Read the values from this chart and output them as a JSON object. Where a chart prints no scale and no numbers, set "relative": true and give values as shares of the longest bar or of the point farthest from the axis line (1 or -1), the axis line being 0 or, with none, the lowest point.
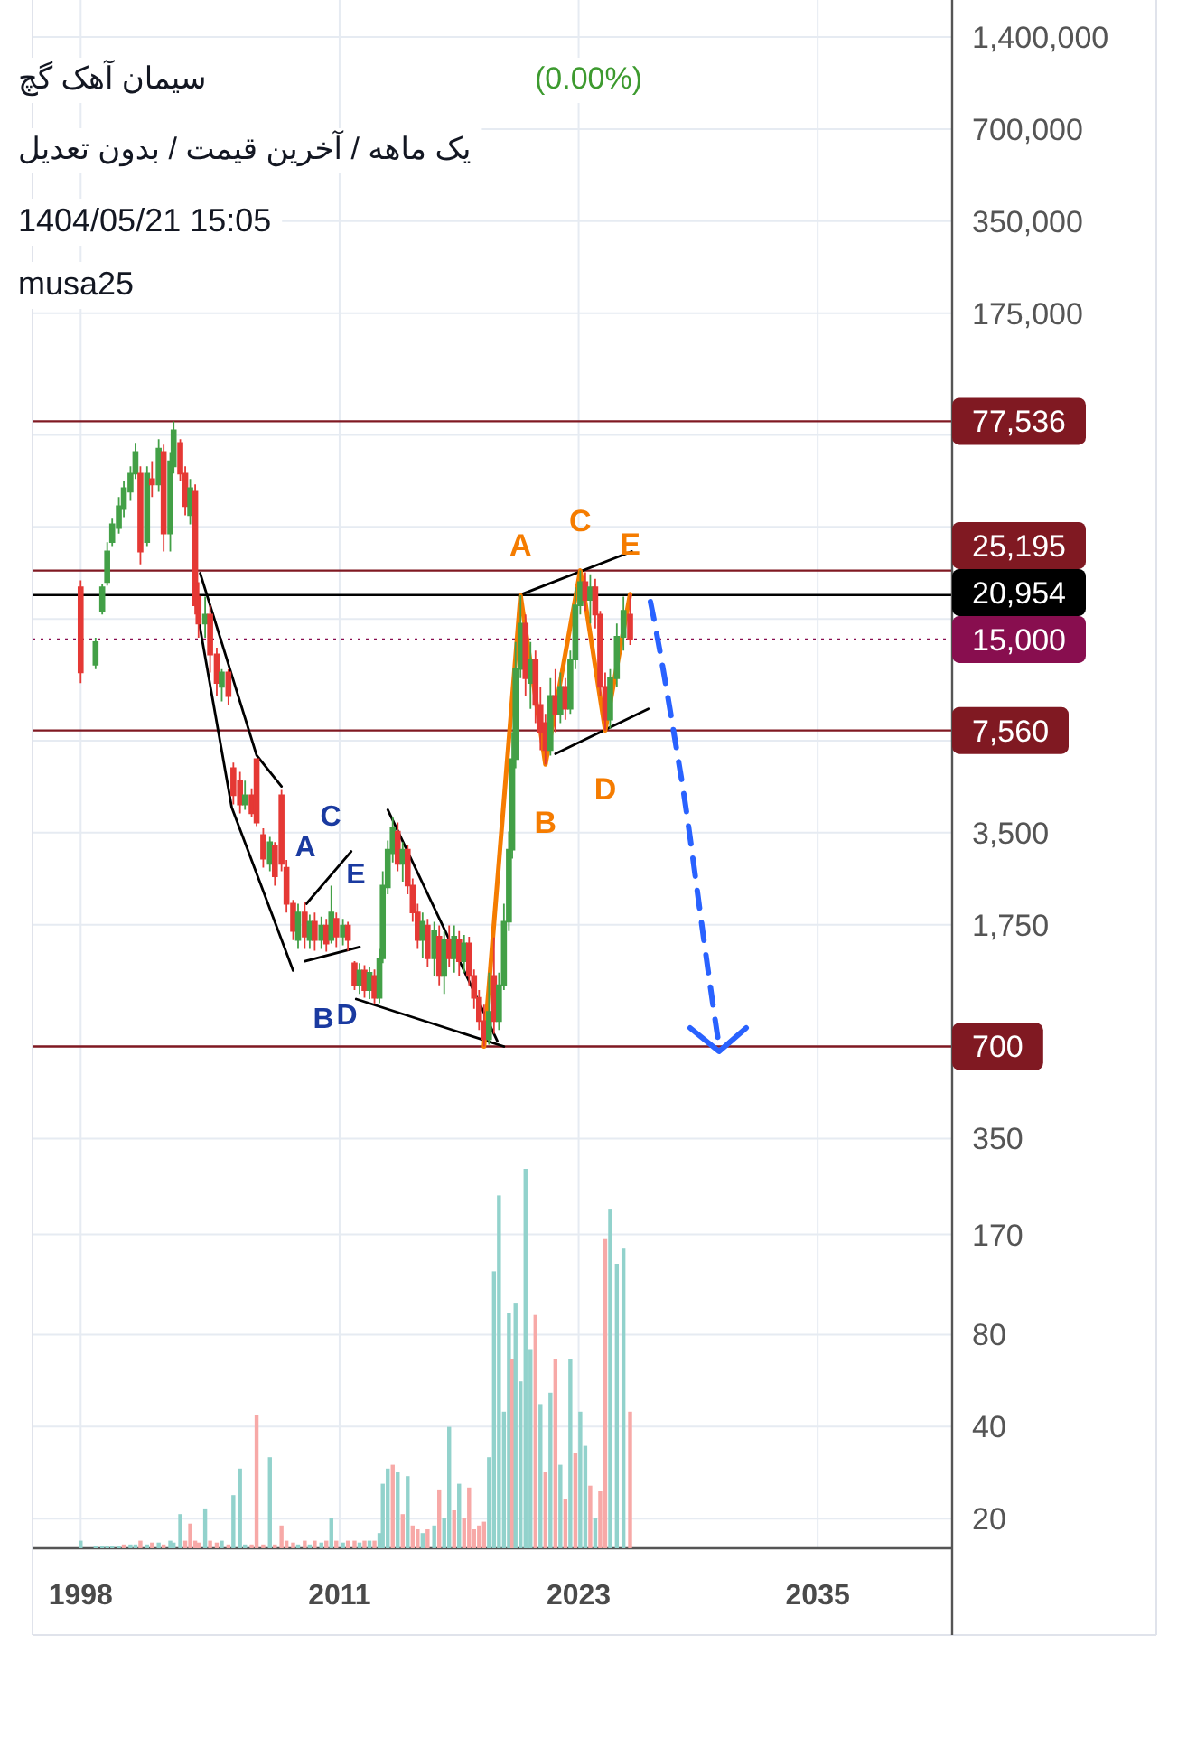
{
  "chart_data": [
    {
      "type": "candlestick",
      "title": "سیمان آهک گچ",
      "subtitle": "یک ماهه / آخرین قیمت / بدون تعدیل",
      "annotations": [
        "(0.00%)",
        "1404/05/21 15:05",
        "musa25",
        "A",
        "B",
        "C",
        "D",
        "E"
      ],
      "x": [
        "1998-01",
        "1998-10",
        "1999-02",
        "1999-05",
        "1999-08",
        "1999-12",
        "2000-03",
        "2000-07",
        "2000-10",
        "2001-01",
        "2001-05",
        "2001-08",
        "2001-12",
        "2002-03",
        "2002-07",
        "2002-09",
        "2003-01",
        "2003-04",
        "2003-07",
        "2003-10",
        "2003-12",
        "2004-04",
        "2004-07",
        "2004-11",
        "2005-02",
        "2005-06",
        "2005-09",
        "2006-01",
        "2006-04",
        "2006-08",
        "2006-11",
        "2007-03",
        "2007-07",
        "2007-10",
        "2008-02",
        "2008-05",
        "2008-09",
        "2008-12",
        "2009-04",
        "2009-07",
        "2009-10",
        "2010-02",
        "2010-05",
        "2010-08",
        "2010-11",
        "2011-03",
        "2011-06",
        "2011-10",
        "2012-01",
        "2012-04",
        "2012-07",
        "2012-10",
        "2013-01",
        "2013-03",
        "2013-06",
        "2013-09",
        "2013-12",
        "2014-03",
        "2014-06",
        "2014-09",
        "2014-12",
        "2015-03",
        "2015-06",
        "2015-10",
        "2016-01",
        "2016-04",
        "2016-07",
        "2016-10",
        "2017-01",
        "2017-04",
        "2017-07",
        "2017-10",
        "2018-01",
        "2018-04",
        "2018-07",
        "2018-10",
        "2019-01",
        "2019-04",
        "2019-07",
        "2019-09",
        "2019-11",
        "2020-02",
        "2020-05",
        "2020-08",
        "2020-11",
        "2021-02",
        "2021-05",
        "2021-08",
        "2021-11",
        "2022-02",
        "2022-05",
        "2022-08",
        "2022-11",
        "2023-02",
        "2023-05",
        "2023-08",
        "2023-11",
        "2024-02",
        "2024-05",
        "2024-08",
        "2024-12",
        "2025-04",
        "2025-08"
      ],
      "ohlc": [
        [
          22200,
          23400,
          10800,
          11700
        ],
        [
          12400,
          15200,
          12000,
          14700
        ],
        [
          18600,
          22800,
          18100,
          22200
        ],
        [
          23100,
          31200,
          22500,
          29100
        ],
        [
          31200,
          37200,
          30300,
          35700
        ],
        [
          34700,
          43800,
          33300,
          40900
        ],
        [
          40000,
          49500,
          37700,
          46900
        ],
        [
          45600,
          55200,
          42600,
          52300
        ],
        [
          52300,
          65900,
          50200,
          61500
        ],
        [
          52300,
          55200,
          26400,
          29100
        ],
        [
          31200,
          55200,
          30300,
          52300
        ],
        [
          50200,
          57400,
          43800,
          48200
        ],
        [
          48200,
          67700,
          45600,
          63100
        ],
        [
          61500,
          65000,
          29100,
          33300
        ],
        [
          33300,
          61500,
          29100,
          57400
        ],
        [
          55200,
          77500,
          52300,
          72400
        ],
        [
          65900,
          67700,
          49500,
          52300
        ],
        [
          52300,
          55200,
          38200,
          40900
        ],
        [
          38200,
          50200,
          35700,
          46900
        ],
        [
          45600,
          48200,
          18100,
          19400
        ],
        [
          20700,
          23100,
          15200,
          16900
        ],
        [
          16900,
          20700,
          15200,
          18100
        ],
        [
          18100,
          19400,
          11700,
          13400
        ],
        [
          13400,
          14100,
          9800,
          10800
        ],
        [
          10500,
          12000,
          9400,
          11700
        ],
        [
          11700,
          12000,
          9160,
          9800
        ],
        [
          5690,
          5930,
          4330,
          4640
        ],
        [
          5180,
          5530,
          4050,
          4330
        ],
        [
          4330,
          5180,
          4160,
          4640
        ],
        [
          4640,
          4890,
          3940,
          4050
        ],
        [
          6090,
          6090,
          3680,
          3780
        ],
        [
          3440,
          3620,
          2690,
          2880
        ],
        [
          2770,
          3390,
          2620,
          3260
        ],
        [
          3180,
          3260,
          2350,
          2520
        ],
        [
          4640,
          4830,
          2620,
          2770
        ],
        [
          2690,
          2850,
          1920,
          2050
        ],
        [
          2050,
          2110,
          1560,
          1670
        ],
        [
          1560,
          2050,
          1460,
          1920
        ],
        [
          1920,
          2080,
          1460,
          1600
        ],
        [
          1560,
          1890,
          1460,
          1790
        ],
        [
          1790,
          1920,
          1440,
          1560
        ],
        [
          1560,
          1860,
          1460,
          1740
        ],
        [
          1740,
          1830,
          1430,
          1520
        ],
        [
          1560,
          2350,
          1520,
          1920
        ],
        [
          1830,
          1920,
          1480,
          1600
        ],
        [
          1600,
          1830,
          1500,
          1740
        ],
        [
          1740,
          1790,
          1440,
          1560
        ],
        [
          1310,
          1330,
          1070,
          1110
        ],
        [
          1110,
          1310,
          1040,
          1240
        ],
        [
          1240,
          1290,
          1010,
          1070
        ],
        [
          1070,
          1270,
          1000,
          1220
        ],
        [
          1190,
          1250,
          960,
          1010
        ],
        [
          1010,
          1460,
          970,
          1360
        ],
        [
          1360,
          2620,
          1310,
          2350
        ],
        [
          2320,
          3300,
          2200,
          3080
        ],
        [
          3000,
          3940,
          2800,
          3640
        ],
        [
          3530,
          3780,
          2620,
          2770
        ],
        [
          2770,
          3260,
          2420,
          3080
        ],
        [
          3080,
          3180,
          2200,
          2350
        ],
        [
          2350,
          2480,
          1790,
          1920
        ],
        [
          1920,
          2050,
          1460,
          1560
        ],
        [
          1560,
          1920,
          1360,
          1790
        ],
        [
          1740,
          1830,
          1270,
          1360
        ],
        [
          1360,
          1790,
          1190,
          1670
        ],
        [
          1600,
          1740,
          1110,
          1190
        ],
        [
          1190,
          1670,
          1040,
          1560
        ],
        [
          1560,
          1740,
          1270,
          1360
        ],
        [
          1360,
          1740,
          1220,
          1600
        ],
        [
          1560,
          1670,
          1190,
          1330
        ],
        [
          1330,
          1620,
          1220,
          1520
        ],
        [
          1520,
          1600,
          1110,
          1190
        ],
        [
          1190,
          1250,
          930,
          1010
        ],
        [
          1010,
          1070,
          792,
          848
        ],
        [
          848,
          958,
          700,
          740
        ],
        [
          740,
          1220,
          710,
          908
        ],
        [
          1190,
          1590,
          770,
          848
        ],
        [
          848,
          1220,
          792,
          1110
        ],
        [
          1110,
          2050,
          1070,
          1790
        ],
        [
          1790,
          3530,
          1670,
          3080
        ],
        [
          3080,
          7470,
          2880,
          6090
        ],
        [
          6090,
          14700,
          5690,
          12000
        ],
        [
          12000,
          20900,
          11200,
          16900
        ],
        [
          16900,
          18100,
          9800,
          11200
        ],
        [
          10800,
          14700,
          8900,
          12900
        ],
        [
          12900,
          13800,
          7990,
          9160
        ],
        [
          9160,
          10500,
          6520,
          7470
        ],
        [
          7990,
          8560,
          5850,
          6520
        ],
        [
          6520,
          11200,
          6250,
          9800
        ],
        [
          9800,
          12000,
          7470,
          8560
        ],
        [
          8560,
          11700,
          7990,
          10500
        ],
        [
          10500,
          11200,
          8200,
          8900
        ],
        [
          8900,
          13800,
          8560,
          12900
        ],
        [
          12900,
          22200,
          12000,
          19400
        ],
        [
          19400,
          25200,
          18100,
          23100
        ],
        [
          23100,
          24900,
          18600,
          20200
        ],
        [
          20200,
          24500,
          16900,
          22200
        ],
        [
          22200,
          23700,
          16300,
          18100
        ],
        [
          18100,
          18600,
          9800,
          10500
        ],
        [
          10500,
          11700,
          7560,
          8200
        ],
        [
          8200,
          12000,
          7660,
          11200
        ],
        [
          11200,
          16900,
          10500,
          15300
        ],
        [
          15300,
          20700,
          13800,
          18600
        ],
        [
          18100,
          21100,
          14400,
          15000
        ]
      ],
      "colors": [
        "#e53935",
        "#43a047",
        "#43a047",
        "#43a047",
        "#43a047",
        "#43a047",
        "#43a047",
        "#43a047",
        "#43a047",
        "#e53935",
        "#43a047",
        "#e53935",
        "#43a047",
        "#e53935",
        "#43a047",
        "#43a047",
        "#e53935",
        "#e53935",
        "#43a047",
        "#e53935",
        "#e53935",
        "#43a047",
        "#e53935",
        "#e53935",
        "#43a047",
        "#e53935",
        "#e53935",
        "#e53935",
        "#43a047",
        "#e53935",
        "#e53935",
        "#e53935",
        "#43a047",
        "#e53935",
        "#e53935",
        "#e53935",
        "#e53935",
        "#43a047",
        "#e53935",
        "#43a047",
        "#e53935",
        "#43a047",
        "#e53935",
        "#43a047",
        "#e53935",
        "#43a047",
        "#e53935",
        "#e53935",
        "#43a047",
        "#e53935",
        "#43a047",
        "#e53935",
        "#43a047",
        "#43a047",
        "#43a047",
        "#43a047",
        "#e53935",
        "#43a047",
        "#e53935",
        "#e53935",
        "#e53935",
        "#43a047",
        "#e53935",
        "#43a047",
        "#e53935",
        "#43a047",
        "#e53935",
        "#43a047",
        "#e53935",
        "#43a047",
        "#e53935",
        "#e53935",
        "#e53935",
        "#e53935",
        "#43a047",
        "#e53935",
        "#43a047",
        "#43a047",
        "#43a047",
        "#43a047",
        "#43a047",
        "#43a047",
        "#e53935",
        "#43a047",
        "#e53935",
        "#e53935",
        "#e53935",
        "#43a047",
        "#e53935",
        "#43a047",
        "#e53935",
        "#43a047",
        "#43a047",
        "#43a047",
        "#e53935",
        "#43a047",
        "#e53935",
        "#e53935",
        "#e53935",
        "#43a047",
        "#43a047",
        "#43a047",
        "#e53935"
      ],
      "series": [
        {
          "type": "line",
          "color": "#000000",
          "x": [
            "2003-09",
            "2005-08",
            "2008-09"
          ],
          "values": [
            21600,
            4240,
            1240
          ]
        },
        {
          "type": "line",
          "color": "#000000",
          "x": [
            "2004-01",
            "2006-11",
            "2008-02"
          ],
          "values": [
            24700,
            6270,
            4960
          ]
        },
        {
          "type": "line",
          "color": "#000000",
          "x": [
            "2009-05",
            "2011-08"
          ],
          "values": [
            2050,
            3040
          ]
        },
        {
          "type": "line",
          "color": "#000000",
          "x": [
            "2009-04",
            "2012-01"
          ],
          "values": [
            1330,
            1480
          ]
        },
        {
          "type": "line",
          "color": "#000000",
          "x": [
            "2013-06",
            "2018-12"
          ],
          "values": [
            4160,
            730
          ]
        },
        {
          "type": "line",
          "color": "#000000",
          "x": [
            "2011-11",
            "2019-04"
          ],
          "values": [
            1000,
            700
          ]
        },
        {
          "type": "line",
          "color": "#000000",
          "x": [
            "2020-01",
            "2025-09"
          ],
          "values": [
            20900,
            29100
          ]
        },
        {
          "type": "line",
          "color": "#000000",
          "x": [
            "2021-11",
            "2026-07"
          ],
          "values": [
            6340,
            8900
          ]
        },
        {
          "type": "line",
          "color": "#f57c00",
          "x": [
            "2018-04",
            "2020-02",
            "2021-05",
            "2023-02",
            "2024-05",
            "2025-08"
          ],
          "values": [
            700,
            20900,
            5850,
            25200,
            7560,
            21100
          ],
          "value_labels": [
            null,
            "A",
            "B",
            "C",
            "D",
            "E"
          ]
        }
      ],
      "ref_lines": [
        {
          "axis": "y",
          "value": 77536,
          "label": "77,536",
          "color": "#801922"
        },
        {
          "axis": "y",
          "value": 25195,
          "label": "25,195",
          "color": "#801922"
        },
        {
          "axis": "y",
          "value": 20954,
          "label": "20,954",
          "color": "#000000"
        },
        {
          "axis": "y",
          "value": 15000,
          "label": "15,000",
          "color": "#880e4f",
          "line_style": "dotted"
        },
        {
          "axis": "y",
          "value": 7560,
          "label": "7,560",
          "color": "#801922"
        },
        {
          "axis": "y",
          "value": 700,
          "label": "700",
          "color": "#801922"
        }
      ],
      "xlim": [
        "1995-08",
        "2041-10"
      ],
      "xticks": [
        "1998",
        "2011",
        "2023",
        "2035"
      ],
      "ylim": [
        16,
        1850000
      ],
      "log": true,
      "yticks": [
        {
          "value": 1400000,
          "label": "1,400,000"
        },
        {
          "value": 700000,
          "label": "700,000"
        },
        {
          "value": 350000,
          "label": "350,000"
        },
        {
          "value": 175000,
          "label": "175,000"
        },
        {
          "value": 70000,
          "label": null
        },
        {
          "value": 35000,
          "label": null
        },
        {
          "value": 17500,
          "label": null
        },
        {
          "value": 7000,
          "label": null
        },
        {
          "value": 3500,
          "label": "3,500"
        },
        {
          "value": 1750,
          "label": "1,750"
        },
        {
          "value": 700,
          "label": null
        },
        {
          "value": 350,
          "label": "350"
        },
        {
          "value": 170,
          "label": "170"
        },
        {
          "value": 80,
          "label": "80"
        },
        {
          "value": 40,
          "label": "40"
        },
        {
          "value": 20,
          "label": "20"
        }
      ],
      "grid": true
    },
    {
      "type": "bar",
      "relative": true,
      "xlim": [
        "1995-08",
        "2041-10"
      ],
      "x": [
        "1998-01",
        "1998-10",
        "1999-02",
        "1999-05",
        "1999-08",
        "1999-12",
        "2000-03",
        "2000-07",
        "2000-10",
        "2001-01",
        "2001-05",
        "2001-08",
        "2001-12",
        "2002-03",
        "2002-07",
        "2002-09",
        "2003-01",
        "2003-04",
        "2003-07",
        "2003-10",
        "2003-12",
        "2004-04",
        "2004-07",
        "2004-11",
        "2005-02",
        "2005-06",
        "2005-09",
        "2006-01",
        "2006-04",
        "2006-08",
        "2006-11",
        "2007-03",
        "2007-07",
        "2007-10",
        "2008-02",
        "2008-05",
        "2008-09",
        "2008-12",
        "2009-04",
        "2009-07",
        "2009-10",
        "2010-02",
        "2010-05",
        "2010-08",
        "2010-11",
        "2011-03",
        "2011-06",
        "2011-10",
        "2012-01",
        "2012-04",
        "2012-07",
        "2012-10",
        "2013-01",
        "2013-03",
        "2013-06",
        "2013-09",
        "2013-12",
        "2014-03",
        "2014-06",
        "2014-09",
        "2014-12",
        "2015-03",
        "2015-06",
        "2015-10",
        "2016-01",
        "2016-04",
        "2016-07",
        "2016-10",
        "2017-01",
        "2017-04",
        "2017-07",
        "2017-10",
        "2018-01",
        "2018-04",
        "2018-07",
        "2018-10",
        "2019-01",
        "2019-04",
        "2019-07",
        "2019-09",
        "2019-11",
        "2020-02",
        "2020-05",
        "2020-08",
        "2020-11",
        "2021-02",
        "2021-05",
        "2021-08",
        "2021-11",
        "2022-02",
        "2022-05",
        "2022-08",
        "2022-11",
        "2023-02",
        "2023-05",
        "2023-08",
        "2023-11",
        "2024-02",
        "2024-05",
        "2024-08",
        "2024-12",
        "2025-04",
        "2025-08"
      ],
      "values": [
        0.02,
        0.005,
        0.005,
        0.005,
        0.005,
        0.005,
        0.01,
        0.01,
        0.01,
        0.02,
        0.01,
        0.015,
        0.015,
        0.01,
        0.02,
        0.015,
        0.09,
        0.02,
        0.065,
        0.02,
        0.015,
        0.105,
        0.02,
        0.015,
        0.02,
        0.01,
        0.14,
        0.21,
        0.01,
        0.01,
        0.35,
        0.01,
        0.24,
        0.01,
        0.06,
        0.02,
        0.015,
        0.01,
        0.02,
        0.01,
        0.02,
        0.015,
        0.02,
        0.08,
        0.02,
        0.015,
        0.02,
        0.02,
        0.015,
        0.02,
        0.02,
        0.02,
        0.04,
        0.17,
        0.21,
        0.22,
        0.2,
        0.09,
        0.19,
        0.06,
        0.05,
        0.04,
        0.05,
        0.06,
        0.155,
        0.08,
        0.32,
        0.1,
        0.17,
        0.08,
        0.16,
        0.05,
        0.06,
        0.07,
        0.24,
        0.73,
        0.93,
        0.36,
        0.62,
        0.5,
        0.645,
        0.44,
        1,
        0.525,
        0.615,
        0.38,
        0.2,
        0.41,
        0.5,
        0.22,
        0.13,
        0.5,
        0.25,
        0.36,
        0.27,
        0.165,
        0.08,
        0.15,
        0.815,
        0.895,
        0.75,
        0.79,
        0.36
      ],
      "colors": [
        "#92d2cc",
        "#92d2cc",
        "#92d2cc",
        "#92d2cc",
        "#92d2cc",
        "#92d2cc",
        "#f7a9a7",
        "#92d2cc",
        "#92d2cc",
        "#f7a9a7",
        "#92d2cc",
        "#f7a9a7",
        "#92d2cc",
        "#f7a9a7",
        "#92d2cc",
        "#92d2cc",
        "#92d2cc",
        "#f7a9a7",
        "#f7a9a7",
        "#f7a9a7",
        "#f7a9a7",
        "#92d2cc",
        "#f7a9a7",
        "#f7a9a7",
        "#92d2cc",
        "#f7a9a7",
        "#92d2cc",
        "#92d2cc",
        "#92d2cc",
        "#f7a9a7",
        "#f7a9a7",
        "#f7a9a7",
        "#92d2cc",
        "#f7a9a7",
        "#f7a9a7",
        "#f7a9a7",
        "#f7a9a7",
        "#92d2cc",
        "#f7a9a7",
        "#92d2cc",
        "#f7a9a7",
        "#92d2cc",
        "#f7a9a7",
        "#92d2cc",
        "#f7a9a7",
        "#92d2cc",
        "#f7a9a7",
        "#f7a9a7",
        "#92d2cc",
        "#f7a9a7",
        "#92d2cc",
        "#f7a9a7",
        "#92d2cc",
        "#92d2cc",
        "#92d2cc",
        "#f7a9a7",
        "#92d2cc",
        "#f7a9a7",
        "#92d2cc",
        "#f7a9a7",
        "#f7a9a7",
        "#92d2cc",
        "#f7a9a7",
        "#92d2cc",
        "#f7a9a7",
        "#92d2cc",
        "#92d2cc",
        "#f7a9a7",
        "#92d2cc",
        "#f7a9a7",
        "#f7a9a7",
        "#f7a9a7",
        "#f7a9a7",
        "#f7a9a7",
        "#92d2cc",
        "#92d2cc",
        "#92d2cc",
        "#92d2cc",
        "#92d2cc",
        "#f7a9a7",
        "#92d2cc",
        "#92d2cc",
        "#92d2cc",
        "#92d2cc",
        "#f7a9a7",
        "#92d2cc",
        "#f7a9a7",
        "#92d2cc",
        "#f7a9a7",
        "#92d2cc",
        "#f7a9a7",
        "#92d2cc",
        "#f7a9a7",
        "#92d2cc",
        "#92d2cc",
        "#f7a9a7",
        "#92d2cc",
        "#f7a9a7",
        "#f7a9a7",
        "#92d2cc",
        "#92d2cc",
        "#92d2cc",
        "#f7a9a7"
      ]
    }
  ]
}
